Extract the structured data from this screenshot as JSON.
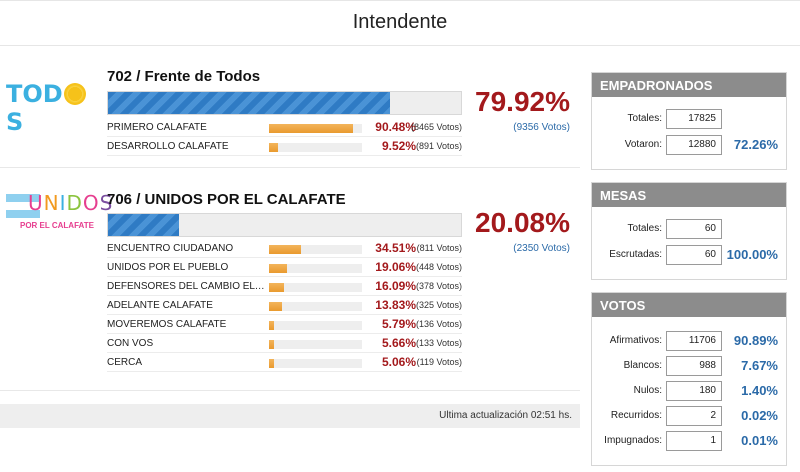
{
  "header": {
    "title": "Intendente"
  },
  "lists": [
    {
      "number_name": "702 / Frente de Todos",
      "logo": {
        "text_before": "TOD",
        "text_after": "S",
        "icon": "sun-icon"
      },
      "bar_fraction": 0.7992,
      "percent": "79.92%",
      "votes": "(9356 Votos)",
      "sublists": [
        {
          "name": "PRIMERO CALAFATE",
          "fraction": 0.9048,
          "percent": "90.48%",
          "votes": "(8465 Votos)"
        },
        {
          "name": "DESARROLLO CALAFATE",
          "fraction": 0.0952,
          "percent": "9.52%",
          "votes": "(891 Votos)"
        }
      ]
    },
    {
      "number_name": "706 / UNIDOS POR EL CALAFATE",
      "logo": {
        "word": "UNIDOS",
        "sub": "POR EL CALAFATE",
        "icon": "argentina-flag-icon"
      },
      "bar_fraction": 0.2008,
      "percent": "20.08%",
      "votes": "(2350 Votos)",
      "sublists": [
        {
          "name": "ENCUENTRO CIUDADANO",
          "fraction": 0.3451,
          "percent": "34.51%",
          "votes": "(811 Votos)"
        },
        {
          "name": "UNIDOS POR EL PUEBLO",
          "fraction": 0.1906,
          "percent": "19.06%",
          "votes": "(448 Votos)"
        },
        {
          "name": "DEFENSORES DEL CAMBIO EL CALAF...",
          "fraction": 0.1609,
          "percent": "16.09%",
          "votes": "(378 Votos)"
        },
        {
          "name": "ADELANTE CALAFATE",
          "fraction": 0.1383,
          "percent": "13.83%",
          "votes": "(325 Votos)"
        },
        {
          "name": "MOVEREMOS CALAFATE",
          "fraction": 0.0579,
          "percent": "5.79%",
          "votes": "(136 Votos)"
        },
        {
          "name": "CON VOS",
          "fraction": 0.0566,
          "percent": "5.66%",
          "votes": "(133 Votos)"
        },
        {
          "name": "CERCA",
          "fraction": 0.0506,
          "percent": "5.06%",
          "votes": "(119 Votos)"
        }
      ]
    }
  ],
  "footer": {
    "update_label": "Ultima actualización  02:51 hs."
  },
  "empadronados": {
    "title": "EMPADRONADOS",
    "rows": [
      {
        "label": "Totales:",
        "value": "17825",
        "percent": ""
      },
      {
        "label": "Votaron:",
        "value": "12880",
        "percent": "72.26%"
      }
    ]
  },
  "mesas": {
    "title": "MESAS",
    "rows": [
      {
        "label": "Totales:",
        "value": "60",
        "percent": ""
      },
      {
        "label": "Escrutadas:",
        "value": "60",
        "percent": "100.00%"
      }
    ]
  },
  "votos": {
    "title": "VOTOS",
    "rows": [
      {
        "label": "Afirmativos:",
        "value": "11706",
        "percent": "90.89%"
      },
      {
        "label": "Blancos:",
        "value": "988",
        "percent": "7.67%"
      },
      {
        "label": "Nulos:",
        "value": "180",
        "percent": "1.40%"
      },
      {
        "label": "Recurridos:",
        "value": "2",
        "percent": "0.02%"
      },
      {
        "label": "Impugnados:",
        "value": "1",
        "percent": "0.01%"
      }
    ]
  },
  "colors": {
    "accent_red": "#a3191c",
    "accent_blue": "#2b6aa8",
    "bar_blue": "#2f7bc4",
    "bar_orange": "#e99a2f",
    "panel_header": "#8c8c8c"
  }
}
